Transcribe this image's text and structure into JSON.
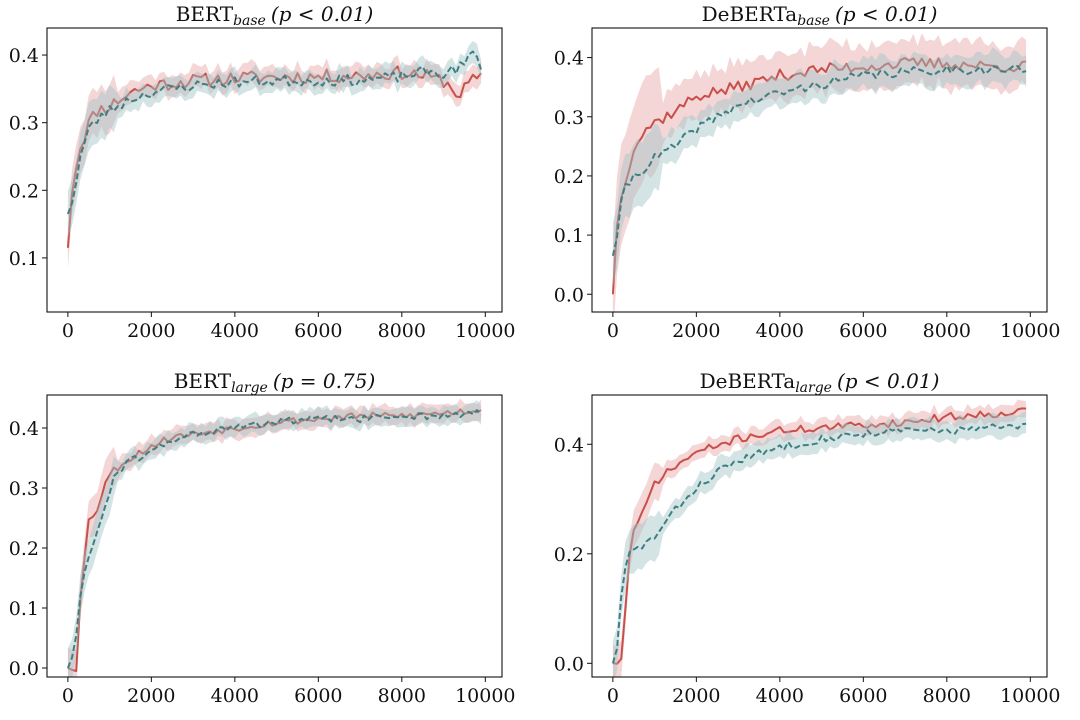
{
  "colors": {
    "series_a": "#c8504a",
    "series_a_band": "#e6a3a6",
    "series_b": "#3e7f82",
    "series_b_band": "#9fc3c6",
    "axis": "#111111"
  },
  "chart_data": [
    {
      "type": "line",
      "title": {
        "main": "BERT",
        "sub": "base",
        "stat": "(p < 0.01)"
      },
      "xlim": [
        -500,
        10400
      ],
      "ylim": [
        0.02,
        0.44
      ],
      "xticks": [
        0,
        2000,
        4000,
        6000,
        8000,
        10000
      ],
      "xtick_labels": [
        "0",
        "2000",
        "4000",
        "6000",
        "8000",
        "10000"
      ],
      "yticks": [
        0.1,
        0.2,
        0.3,
        0.4
      ],
      "ytick_labels": [
        "0.1",
        "0.2",
        "0.3",
        "0.4"
      ],
      "series": [
        {
          "name": "solid",
          "style": "solid",
          "band": 0.012,
          "noise": 0.01,
          "seed": 11,
          "knots": [
            [
              0,
              0.115
            ],
            [
              100,
              0.2
            ],
            [
              250,
              0.255
            ],
            [
              500,
              0.3
            ],
            [
              700,
              0.318
            ],
            [
              1000,
              0.325
            ],
            [
              1500,
              0.345
            ],
            [
              2000,
              0.355
            ],
            [
              3000,
              0.362
            ],
            [
              4000,
              0.366
            ],
            [
              5000,
              0.368
            ],
            [
              6000,
              0.368
            ],
            [
              7000,
              0.37
            ],
            [
              8000,
              0.374
            ],
            [
              8500,
              0.37
            ],
            [
              9000,
              0.362
            ],
            [
              9400,
              0.34
            ],
            [
              9600,
              0.36
            ],
            [
              9900,
              0.365
            ]
          ]
        },
        {
          "name": "dashed",
          "style": "dashed",
          "band": 0.012,
          "noise": 0.008,
          "seed": 23,
          "knots": [
            [
              0,
              0.165
            ],
            [
              150,
              0.195
            ],
            [
              300,
              0.25
            ],
            [
              500,
              0.29
            ],
            [
              800,
              0.31
            ],
            [
              1000,
              0.318
            ],
            [
              1500,
              0.335
            ],
            [
              2000,
              0.345
            ],
            [
              3000,
              0.355
            ],
            [
              4000,
              0.36
            ],
            [
              5000,
              0.362
            ],
            [
              6000,
              0.362
            ],
            [
              7000,
              0.363
            ],
            [
              8000,
              0.368
            ],
            [
              8500,
              0.375
            ],
            [
              9000,
              0.372
            ],
            [
              9500,
              0.385
            ],
            [
              9700,
              0.405
            ],
            [
              9900,
              0.385
            ]
          ]
        }
      ]
    },
    {
      "type": "line",
      "title": {
        "main": "DeBERTa",
        "sub": "base",
        "stat": "(p < 0.01)"
      },
      "xlim": [
        -500,
        10400
      ],
      "ylim": [
        -0.03,
        0.45
      ],
      "xticks": [
        0,
        2000,
        4000,
        6000,
        8000,
        10000
      ],
      "xtick_labels": [
        "0",
        "2000",
        "4000",
        "6000",
        "8000",
        "10000"
      ],
      "yticks": [
        0.0,
        0.1,
        0.2,
        0.3,
        0.4
      ],
      "ytick_labels": [
        "0.0",
        "0.1",
        "0.2",
        "0.3",
        "0.4"
      ],
      "series": [
        {
          "name": "solid",
          "style": "solid",
          "band": 0.03,
          "noise": 0.01,
          "seed": 37,
          "knots": [
            [
              0,
              0.0
            ],
            [
              100,
              0.12
            ],
            [
              250,
              0.18
            ],
            [
              500,
              0.25
            ],
            [
              800,
              0.28
            ],
            [
              1000,
              0.29
            ],
            [
              1500,
              0.31
            ],
            [
              2000,
              0.335
            ],
            [
              3000,
              0.35
            ],
            [
              4000,
              0.37
            ],
            [
              5000,
              0.38
            ],
            [
              6000,
              0.385
            ],
            [
              7000,
              0.39
            ],
            [
              8000,
              0.39
            ],
            [
              9000,
              0.385
            ],
            [
              9500,
              0.385
            ],
            [
              9900,
              0.385
            ]
          ]
        },
        {
          "name": "dashed",
          "style": "dashed",
          "band": 0.02,
          "noise": 0.008,
          "seed": 41,
          "knots": [
            [
              0,
              0.065
            ],
            [
              100,
              0.1
            ],
            [
              250,
              0.175
            ],
            [
              500,
              0.2
            ],
            [
              800,
              0.215
            ],
            [
              1000,
              0.23
            ],
            [
              1500,
              0.25
            ],
            [
              2000,
              0.28
            ],
            [
              3000,
              0.32
            ],
            [
              4000,
              0.34
            ],
            [
              5000,
              0.355
            ],
            [
              6000,
              0.37
            ],
            [
              7000,
              0.375
            ],
            [
              8000,
              0.38
            ],
            [
              9000,
              0.38
            ],
            [
              9500,
              0.38
            ],
            [
              9900,
              0.38
            ]
          ]
        }
      ]
    },
    {
      "type": "line",
      "title": {
        "main": "BERT",
        "sub": "large",
        "stat": "(p = 0.75)"
      },
      "xlim": [
        -500,
        10400
      ],
      "ylim": [
        -0.015,
        0.455
      ],
      "xticks": [
        0,
        2000,
        4000,
        6000,
        8000,
        10000
      ],
      "xtick_labels": [
        "0",
        "2000",
        "4000",
        "6000",
        "8000",
        "10000"
      ],
      "yticks": [
        0.0,
        0.1,
        0.2,
        0.3,
        0.4
      ],
      "ytick_labels": [
        "0.0",
        "0.1",
        "0.2",
        "0.3",
        "0.4"
      ],
      "series": [
        {
          "name": "solid",
          "style": "solid",
          "band": 0.012,
          "noise": 0.006,
          "seed": 53,
          "knots": [
            [
              0,
              0.0
            ],
            [
              200,
              0.0
            ],
            [
              300,
              0.12
            ],
            [
              500,
              0.245
            ],
            [
              700,
              0.265
            ],
            [
              900,
              0.31
            ],
            [
              1100,
              0.33
            ],
            [
              1500,
              0.35
            ],
            [
              2000,
              0.37
            ],
            [
              2500,
              0.385
            ],
            [
              3000,
              0.39
            ],
            [
              4000,
              0.4
            ],
            [
              5000,
              0.41
            ],
            [
              6000,
              0.415
            ],
            [
              7000,
              0.42
            ],
            [
              8000,
              0.42
            ],
            [
              9000,
              0.425
            ],
            [
              9900,
              0.43
            ]
          ]
        },
        {
          "name": "dashed",
          "style": "dashed",
          "band": 0.012,
          "noise": 0.006,
          "seed": 61,
          "knots": [
            [
              0,
              0.0
            ],
            [
              100,
              0.02
            ],
            [
              200,
              0.05
            ],
            [
              300,
              0.12
            ],
            [
              500,
              0.19
            ],
            [
              700,
              0.225
            ],
            [
              900,
              0.27
            ],
            [
              1100,
              0.32
            ],
            [
              1500,
              0.345
            ],
            [
              2000,
              0.36
            ],
            [
              2500,
              0.38
            ],
            [
              3000,
              0.39
            ],
            [
              4000,
              0.4
            ],
            [
              5000,
              0.41
            ],
            [
              6000,
              0.415
            ],
            [
              7000,
              0.415
            ],
            [
              8000,
              0.42
            ],
            [
              9000,
              0.42
            ],
            [
              9900,
              0.425
            ]
          ]
        }
      ]
    },
    {
      "type": "line",
      "title": {
        "main": "DeBERTa",
        "sub": "large",
        "stat": "(p < 0.01)"
      },
      "xlim": [
        -500,
        10400
      ],
      "ylim": [
        -0.025,
        0.49
      ],
      "xticks": [
        0,
        2000,
        4000,
        6000,
        8000,
        10000
      ],
      "xtick_labels": [
        "0",
        "2000",
        "4000",
        "6000",
        "8000",
        "10000"
      ],
      "yticks": [
        0.0,
        0.2,
        0.4
      ],
      "ytick_labels": [
        "0.0",
        "0.2",
        "0.4"
      ],
      "series": [
        {
          "name": "solid",
          "style": "solid",
          "band": 0.012,
          "noise": 0.007,
          "seed": 71,
          "knots": [
            [
              0,
              0.0
            ],
            [
              200,
              0.005
            ],
            [
              300,
              0.1
            ],
            [
              400,
              0.2
            ],
            [
              500,
              0.24
            ],
            [
              700,
              0.27
            ],
            [
              1000,
              0.33
            ],
            [
              1500,
              0.36
            ],
            [
              2000,
              0.385
            ],
            [
              3000,
              0.41
            ],
            [
              4000,
              0.425
            ],
            [
              5000,
              0.43
            ],
            [
              6000,
              0.435
            ],
            [
              7000,
              0.44
            ],
            [
              8000,
              0.45
            ],
            [
              9000,
              0.455
            ],
            [
              9900,
              0.462
            ]
          ]
        },
        {
          "name": "dashed",
          "style": "dashed",
          "band": 0.015,
          "noise": 0.007,
          "seed": 83,
          "knots": [
            [
              0,
              0.0
            ],
            [
              100,
              0.03
            ],
            [
              250,
              0.16
            ],
            [
              400,
              0.2
            ],
            [
              600,
              0.21
            ],
            [
              1000,
              0.23
            ],
            [
              1500,
              0.28
            ],
            [
              2000,
              0.32
            ],
            [
              2500,
              0.35
            ],
            [
              3000,
              0.37
            ],
            [
              4000,
              0.395
            ],
            [
              5000,
              0.41
            ],
            [
              6000,
              0.42
            ],
            [
              7000,
              0.425
            ],
            [
              8000,
              0.425
            ],
            [
              9000,
              0.43
            ],
            [
              9900,
              0.432
            ]
          ]
        }
      ]
    }
  ]
}
